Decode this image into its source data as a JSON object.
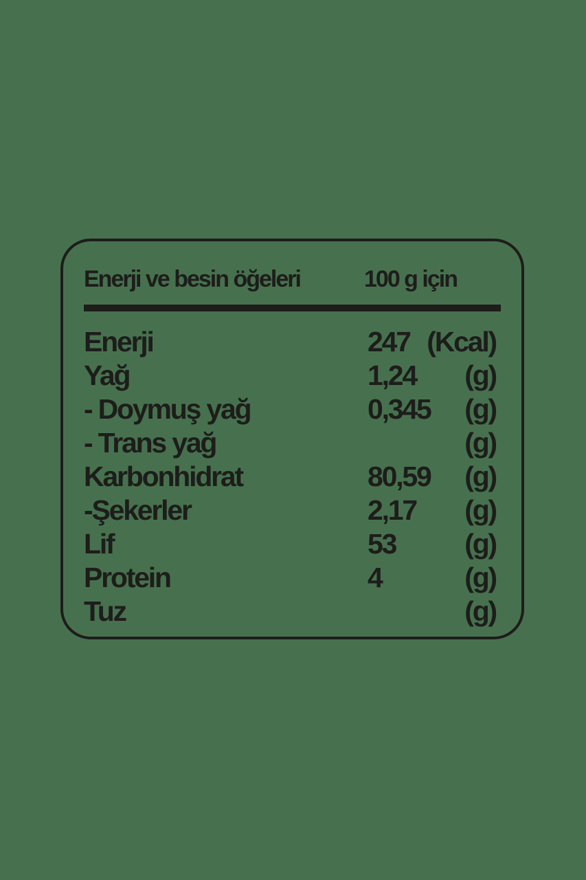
{
  "page": {
    "background_color": "#47714e",
    "text_color": "#1d1d1b",
    "border_color": "#1d1d1b"
  },
  "nutrition_label": {
    "header": {
      "nutrients_column": "Enerji ve besin öğeleri",
      "amount_column": "100 g için"
    },
    "rows": [
      {
        "name": "Enerji",
        "value": "247",
        "unit": "(Kcal)"
      },
      {
        "name": "Yağ",
        "value": "1,24",
        "unit": "(g)"
      },
      {
        "name": "- Doymuş yağ",
        "value": "0,345",
        "unit": "(g)"
      },
      {
        "name": "- Trans yağ",
        "value": "",
        "unit": "(g)"
      },
      {
        "name": "Karbonhidrat",
        "value": "80,59",
        "unit": "(g)"
      },
      {
        "name": "-Şekerler",
        "value": "2,17",
        "unit": "(g)"
      },
      {
        "name": "Lif",
        "value": "53",
        "unit": "(g)"
      },
      {
        "name": "Protein",
        "value": "4",
        "unit": "(g)"
      },
      {
        "name": "Tuz",
        "value": "",
        "unit": "(g)"
      }
    ]
  }
}
